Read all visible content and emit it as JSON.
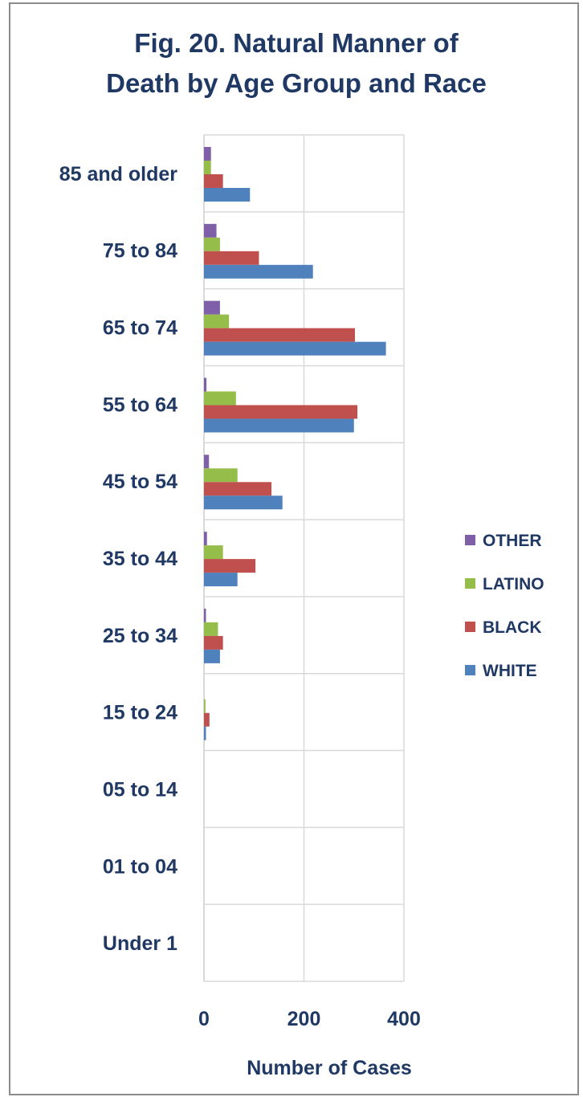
{
  "chart_data": {
    "type": "bar",
    "orientation": "horizontal",
    "title": [
      "Fig. 20. Natural Manner of",
      "Death by Age Group and Race"
    ],
    "xlabel": "Number of Cases",
    "ylabel": "",
    "xlim": [
      0,
      400
    ],
    "xticks": [
      0,
      200,
      400
    ],
    "grid": true,
    "legend_position": "right",
    "categories": [
      "85 and older",
      "75 to 84",
      "65 to 74",
      "55 to 64",
      "45 to 54",
      "35 to 44",
      "25 to 34",
      "15 to 24",
      "05 to 14",
      "01 to 04",
      "Under 1"
    ],
    "series": [
      {
        "name": "OTHER",
        "color": "#7f5fa8",
        "values": [
          14,
          25,
          32,
          5,
          10,
          6,
          4,
          0,
          0,
          0,
          0
        ]
      },
      {
        "name": "LATINO",
        "color": "#94bd4a",
        "values": [
          14,
          32,
          50,
          64,
          67,
          38,
          28,
          3,
          0,
          0,
          0
        ]
      },
      {
        "name": "BLACK",
        "color": "#c0504d",
        "values": [
          38,
          110,
          302,
          307,
          135,
          103,
          38,
          11,
          0,
          0,
          0
        ]
      },
      {
        "name": "WHITE",
        "color": "#4f81bd",
        "values": [
          92,
          218,
          364,
          300,
          157,
          67,
          32,
          4,
          0,
          0,
          0
        ]
      }
    ],
    "legend_order": [
      "OTHER",
      "LATINO",
      "BLACK",
      "WHITE"
    ]
  }
}
